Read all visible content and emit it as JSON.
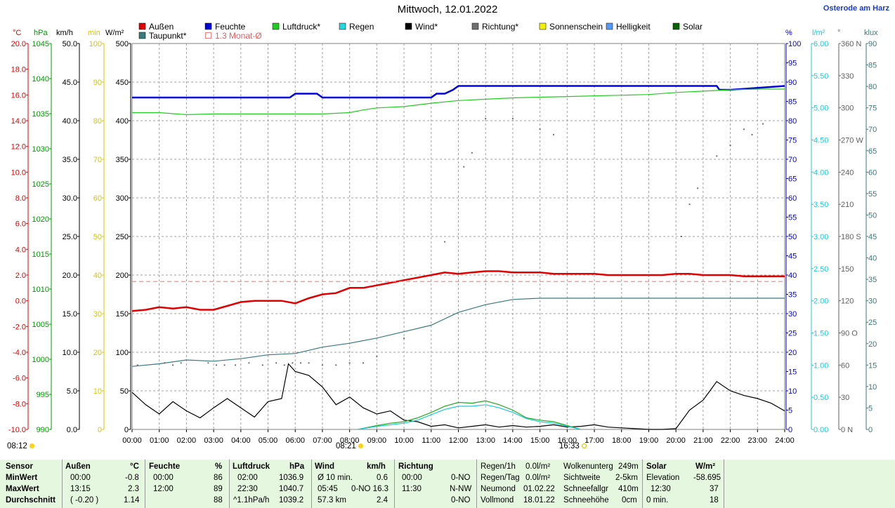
{
  "header": {
    "title": "Mittwoch, 12.01.2022",
    "location": "Osterode am Harz"
  },
  "legend": [
    {
      "name": "Außen",
      "color": "#e00000"
    },
    {
      "name": "Feuchte",
      "color": "#0000dc"
    },
    {
      "name": "Luftdruck*",
      "color": "#22cc22"
    },
    {
      "name": "Regen",
      "color": "#20d8e0"
    },
    {
      "name": "Wind*",
      "color": "#000000"
    },
    {
      "name": "Richtung*",
      "color": "#707070"
    },
    {
      "name": "Sonnenschein",
      "color": "#f0f000"
    },
    {
      "name": "Helligkeit",
      "color": "#5599ff"
    },
    {
      "name": "Solar",
      "color": "#006400"
    },
    {
      "name": "Taupunkt*",
      "color": "#3a7a7a"
    },
    {
      "name": "1.3 Monat-Ø",
      "color": "#f08080"
    }
  ],
  "axes_units": {
    "temp": "°C",
    "pressure": "hPa",
    "wind": "km/h",
    "sun": "min",
    "solar": "W/m²",
    "humidity": "%",
    "rain": "l/m²",
    "direction": "°",
    "lux": "klux"
  },
  "sun_events": {
    "sunrise": "08:12",
    "sunrise_curve": "08:21",
    "sunset_curve": "16:33"
  },
  "chart_data": {
    "type": "line",
    "x_unit": "time of day",
    "x_ticks": [
      "00:00",
      "01:00",
      "02:00",
      "03:00",
      "04:00",
      "05:00",
      "06:00",
      "07:00",
      "08:00",
      "09:00",
      "10:00",
      "11:00",
      "12:00",
      "13:00",
      "14:00",
      "15:00",
      "16:00",
      "17:00",
      "18:00",
      "19:00",
      "20:00",
      "21:00",
      "22:00",
      "23:00",
      "24:00"
    ],
    "xlim": [
      0,
      24
    ],
    "grid": true,
    "axes": {
      "temp": {
        "range": [
          -10,
          20
        ],
        "ticks": [
          "20.0",
          "18.0",
          "16.0",
          "14.0",
          "12.0",
          "10.0",
          "8.0",
          "6.0",
          "4.0",
          "2.0",
          "0.0",
          "-2.0",
          "-4.0",
          "-6.0",
          "-8.0",
          "-10.0"
        ],
        "color": "#e00000"
      },
      "pressure": {
        "range": [
          990,
          1047.5
        ],
        "ticks": [
          "1045",
          "1040",
          "1035",
          "1030",
          "1025",
          "1020",
          "1015",
          "1010",
          "1005",
          "1000",
          "995",
          "990"
        ],
        "color": "#009900"
      },
      "wind": {
        "range": [
          0,
          50
        ],
        "ticks": [
          "50.0",
          "45.0",
          "40.0",
          "35.0",
          "30.0",
          "25.0",
          "20.0",
          "15.0",
          "10.0",
          "5.0",
          "0.0"
        ],
        "color": "#000000"
      },
      "sun": {
        "range": [
          0,
          100
        ],
        "ticks": [
          "100",
          "90",
          "80",
          "70",
          "60",
          "50",
          "40",
          "30",
          "20",
          "10",
          "0"
        ],
        "color": "#d4c800"
      },
      "solar": {
        "range": [
          0,
          500
        ],
        "ticks": [
          "500",
          "450",
          "400",
          "350",
          "300",
          "250",
          "200",
          "150",
          "100",
          "50",
          "0"
        ],
        "color": "#000000"
      },
      "humidity": {
        "range": [
          0,
          100
        ],
        "ticks": [
          "100",
          "95",
          "90",
          "85",
          "80",
          "75",
          "70",
          "65",
          "60",
          "55",
          "50",
          "45",
          "40",
          "35",
          "30",
          "25",
          "20",
          "15",
          "10",
          "5",
          "0"
        ],
        "color": "#0000c8"
      },
      "rain": {
        "range": [
          0,
          6
        ],
        "ticks": [
          "6.00",
          "5.50",
          "5.00",
          "4.50",
          "4.00",
          "3.50",
          "3.00",
          "2.50",
          "2.00",
          "1.50",
          "1.00",
          "0.50",
          "0.00"
        ],
        "color": "#20c8d8"
      },
      "direction": {
        "range": [
          0,
          360
        ],
        "ticks": [
          "360 N",
          "330",
          "300",
          "270 W",
          "240",
          "210",
          "180 S",
          "150",
          "120",
          "90 O",
          "60",
          "30",
          "0 N"
        ],
        "color": "#606060"
      },
      "lux": {
        "range": [
          0,
          90
        ],
        "ticks": [
          "90",
          "85",
          "80",
          "75",
          "70",
          "65",
          "60",
          "55",
          "50",
          "45",
          "40",
          "35",
          "30",
          "25",
          "20",
          "15",
          "10",
          "5",
          "0"
        ],
        "color": "#3a7a7a"
      }
    },
    "series": [
      {
        "name": "Außen",
        "axis": "temp",
        "color": "#e00000",
        "x": [
          0,
          0.5,
          1,
          1.5,
          2,
          2.5,
          3,
          3.5,
          4,
          4.5,
          5,
          5.5,
          6,
          6.5,
          7,
          7.5,
          8,
          8.5,
          9,
          9.5,
          10,
          10.5,
          11,
          11.5,
          12,
          12.5,
          13,
          13.5,
          14,
          14.5,
          15,
          15.5,
          16,
          16.5,
          17,
          17.5,
          18,
          18.5,
          19,
          19.5,
          20,
          20.5,
          21,
          21.5,
          22,
          22.5,
          23,
          23.5,
          24
        ],
        "y": [
          -0.8,
          -0.7,
          -0.5,
          -0.6,
          -0.5,
          -0.7,
          -0.7,
          -0.4,
          -0.1,
          0.0,
          0.0,
          0.0,
          -0.2,
          0.2,
          0.5,
          0.6,
          1.0,
          1.0,
          1.2,
          1.4,
          1.6,
          1.8,
          2.0,
          2.2,
          2.1,
          2.2,
          2.3,
          2.3,
          2.2,
          2.2,
          2.2,
          2.1,
          2.1,
          2.1,
          2.1,
          2.0,
          2.0,
          2.0,
          2.0,
          2.0,
          2.1,
          2.1,
          2.0,
          2.0,
          2.0,
          1.9,
          1.9,
          1.9,
          1.9
        ]
      },
      {
        "name": "Taupunkt*",
        "axis": "temp",
        "color": "#3a7a7a",
        "x": [
          0,
          1,
          2,
          3,
          4,
          5,
          6,
          7,
          8,
          9,
          10,
          11,
          12,
          13,
          14,
          15,
          16,
          17,
          18,
          19,
          20,
          21,
          22,
          23,
          24
        ],
        "y": [
          -5.1,
          -4.9,
          -4.6,
          -4.7,
          -4.5,
          -4.2,
          -4.1,
          -3.6,
          -3.3,
          -2.9,
          -2.4,
          -1.9,
          -0.9,
          -0.3,
          0.1,
          0.2,
          0.2,
          0.2,
          0.2,
          0.2,
          0.2,
          0.2,
          0.2,
          0.2,
          0.2
        ]
      },
      {
        "name": "1.3 Monat-Ø",
        "axis": "temp",
        "color": "#f08080",
        "dashed": true,
        "x": [
          0,
          24
        ],
        "y": [
          1.5,
          1.5
        ]
      },
      {
        "name": "Feuchte",
        "axis": "humidity",
        "color": "#0000dc",
        "x": [
          0,
          5.8,
          6.0,
          6.8,
          7.0,
          11.0,
          11.2,
          11.5,
          11.8,
          12.0,
          20.5,
          21.5,
          21.6,
          22.0,
          24.0
        ],
        "y": [
          86,
          86,
          87,
          87,
          86,
          86,
          87,
          87,
          88,
          89,
          89,
          89,
          88,
          88,
          89
        ]
      },
      {
        "name": "Luftdruck*",
        "axis": "pressure",
        "color": "#22cc22",
        "x": [
          0,
          1,
          2,
          3,
          4,
          5,
          6,
          7,
          8,
          8.5,
          9,
          10,
          11,
          12,
          13,
          14,
          15,
          16,
          17,
          18,
          19,
          20,
          21,
          22,
          23,
          24
        ],
        "y": [
          1037.2,
          1037.2,
          1036.9,
          1037.0,
          1037.0,
          1037.0,
          1037.0,
          1037.0,
          1037.2,
          1037.6,
          1037.9,
          1038.1,
          1038.6,
          1039.0,
          1039.2,
          1039.4,
          1039.5,
          1039.6,
          1039.7,
          1039.8,
          1039.9,
          1040.2,
          1040.4,
          1040.6,
          1040.7,
          1040.7
        ]
      },
      {
        "name": "Wind*",
        "axis": "wind",
        "color": "#000000",
        "x": [
          0,
          0.5,
          1,
          1.5,
          2,
          2.5,
          3,
          3.5,
          4,
          4.5,
          5,
          5.5,
          5.75,
          6,
          6.5,
          7,
          7.5,
          8,
          8.5,
          9,
          9.5,
          10,
          10.5,
          11,
          11.5,
          12,
          12.5,
          13,
          13.5,
          14,
          14.5,
          15,
          15.5,
          16,
          16.5,
          17,
          17.5,
          18,
          18.5,
          19,
          19.5,
          20,
          20.5,
          21,
          21.5,
          22,
          22.5,
          23,
          23.5,
          24
        ],
        "y": [
          4.8,
          3.2,
          2.0,
          3.6,
          2.4,
          1.5,
          2.8,
          4.0,
          2.8,
          1.6,
          3.6,
          4.0,
          8.5,
          7.5,
          7.0,
          5.5,
          3.2,
          4.2,
          2.8,
          2.0,
          2.4,
          1.2,
          1.0,
          0.4,
          0.6,
          0.2,
          0.4,
          0.6,
          0.3,
          0.5,
          0.3,
          0.4,
          0.6,
          0.3,
          0.4,
          0.6,
          0.3,
          0.2,
          0.1,
          0.0,
          0.0,
          0.1,
          2.5,
          3.8,
          6.2,
          5.0,
          4.4,
          4.0,
          3.4,
          2.4
        ]
      },
      {
        "name": "Solar",
        "axis": "solar",
        "color": "#22aa22",
        "x": [
          8.3,
          9,
          9.5,
          10,
          10.5,
          11,
          11.5,
          12,
          12.5,
          13,
          13.5,
          14,
          14.5,
          15,
          15.5,
          16,
          16.5
        ],
        "y": [
          0,
          5,
          8,
          10,
          15,
          22,
          30,
          35,
          34,
          37,
          32,
          25,
          15,
          12,
          10,
          5,
          0
        ]
      },
      {
        "name": "Helligkeit",
        "axis": "solar",
        "color": "#20c8d8",
        "x": [
          8.3,
          9,
          9.5,
          10,
          10.5,
          11,
          11.5,
          12,
          12.5,
          13,
          13.5,
          14,
          14.5,
          15,
          15.5,
          16,
          16.5
        ],
        "y": [
          0,
          4,
          6,
          8,
          12,
          19,
          26,
          30,
          30,
          32,
          28,
          22,
          14,
          10,
          8,
          4,
          0
        ]
      }
    ],
    "points": [
      {
        "name": "Richtung*",
        "axis": "direction",
        "color": "#707070",
        "x": [
          0.2,
          1.2,
          1.5,
          1.8,
          2.8,
          3.1,
          3.4,
          3.8,
          4.3,
          4.8,
          5.3,
          5.6,
          5.9,
          6.2,
          6.5,
          7.0,
          7.5,
          8.0,
          8.5,
          9.0,
          10,
          11.5,
          12.2,
          12.5,
          13,
          14,
          15,
          15.5,
          20.2,
          20.5,
          20.8,
          21.5,
          22,
          22.5,
          22.8,
          23.2
        ],
        "y": [
          60,
          62,
          60,
          62,
          62,
          60,
          60,
          60,
          62,
          60,
          62,
          60,
          62,
          62,
          62,
          60,
          60,
          62,
          62,
          68,
          85,
          175,
          245,
          258,
          290,
          290,
          280,
          275,
          180,
          210,
          225,
          255,
          265,
          280,
          275,
          285
        ]
      }
    ]
  },
  "summary": {
    "headers": {
      "sensor": "Sensor",
      "aussen": "Außen",
      "aussen_unit": "°C",
      "feuchte": "Feuchte",
      "feuchte_unit": "%",
      "luftdruck": "Luftdruck",
      "luftdruck_unit": "hPa",
      "wind": "Wind",
      "wind_unit": "km/h",
      "richtung": "Richtung",
      "solar": "Solar",
      "solar_unit": "W/m²"
    },
    "rows": [
      {
        "label": "MinWert",
        "aussen_t": "00:00",
        "aussen_v": "-0.8",
        "feuchte_t": "00:00",
        "feuchte_v": "86",
        "druck_t": "02:00",
        "druck_v": "1036.9",
        "wind_t": "Ø 10 min.",
        "wind_v": "0.6",
        "richt_t": "00:00",
        "richt_v": "0-NO"
      },
      {
        "label": "MaxWert",
        "aussen_t": "13:15",
        "aussen_v": "2.3",
        "feuchte_t": "12:00",
        "feuchte_v": "89",
        "druck_t": "22:30",
        "druck_v": "1040.7",
        "wind_t": "05:45",
        "wind_v": "0-NO 16.3",
        "richt_t": "11:30",
        "richt_v": "N-NW"
      },
      {
        "label": "Durchschnitt",
        "aussen_t": "( -0.20 )",
        "aussen_v": "1.14",
        "feuchte_t": "",
        "feuchte_v": "88",
        "druck_t": "^1.1hPa/h",
        "druck_v": "1039.2",
        "wind_t": "57.3 km",
        "wind_v": "2.4",
        "richt_t": "",
        "richt_v": "0-NO"
      }
    ],
    "extras": [
      [
        "Regen/1h",
        "0.0l/m²",
        "Wolkenunterg",
        "249m"
      ],
      [
        "Regen/Tag",
        "0.0l/m²",
        "Sichtweite",
        "2-5km"
      ],
      [
        "Neumond",
        "01.02.22",
        "Schneefallgr",
        "410m"
      ],
      [
        "Vollmond",
        "18.01.22",
        "Schneehöhe",
        "0cm"
      ]
    ],
    "solar_rows": [
      [
        "Elevation",
        "-58.695"
      ],
      [
        "12:30",
        "37"
      ],
      [
        "0 min.",
        "18"
      ]
    ]
  }
}
